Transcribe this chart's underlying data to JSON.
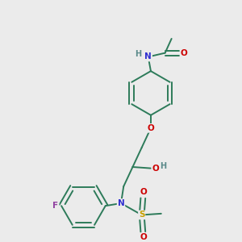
{
  "bg_color": "#ebebeb",
  "bond_color": "#2d7b5a",
  "atom_colors": {
    "N": "#3030d0",
    "O": "#cc0000",
    "F": "#9040a0",
    "S": "#c8a000",
    "H": "#5a8a8a",
    "C": "#2d7b5a"
  },
  "figure_size": [
    3.0,
    3.0
  ],
  "dpi": 100,
  "lw": 1.4
}
